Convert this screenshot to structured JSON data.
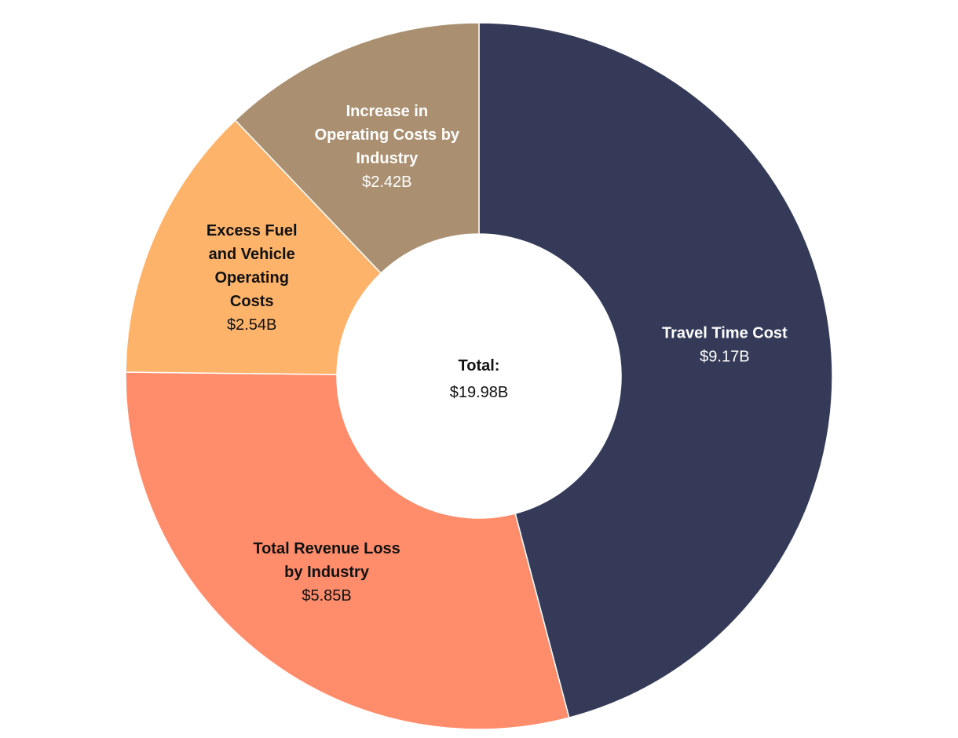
{
  "chart_data": {
    "type": "pie",
    "style": "donut",
    "center": {
      "label": "Total:",
      "value_label": "$19.98B",
      "value": 19.98
    },
    "slices": [
      {
        "name_lines": [
          "Travel Time Cost"
        ],
        "value": 9.17,
        "value_label": "$9.17B",
        "color": "#343a57",
        "text_color": "#ffffff"
      },
      {
        "name_lines": [
          "Total Revenue Loss",
          "by Industry"
        ],
        "value": 5.85,
        "value_label": "$5.85B",
        "color": "#ff8c6b",
        "text_color": "#111111"
      },
      {
        "name_lines": [
          "Excess Fuel",
          "and Vehicle",
          "Operating",
          "Costs"
        ],
        "value": 2.54,
        "value_label": "$2.54B",
        "color": "#feb36b",
        "text_color": "#111111"
      },
      {
        "name_lines": [
          "Increase in",
          "Operating Costs by",
          "Industry"
        ],
        "value": 2.42,
        "value_label": "$2.42B",
        "color": "#aa9070",
        "text_color": "#ffffff"
      }
    ]
  }
}
